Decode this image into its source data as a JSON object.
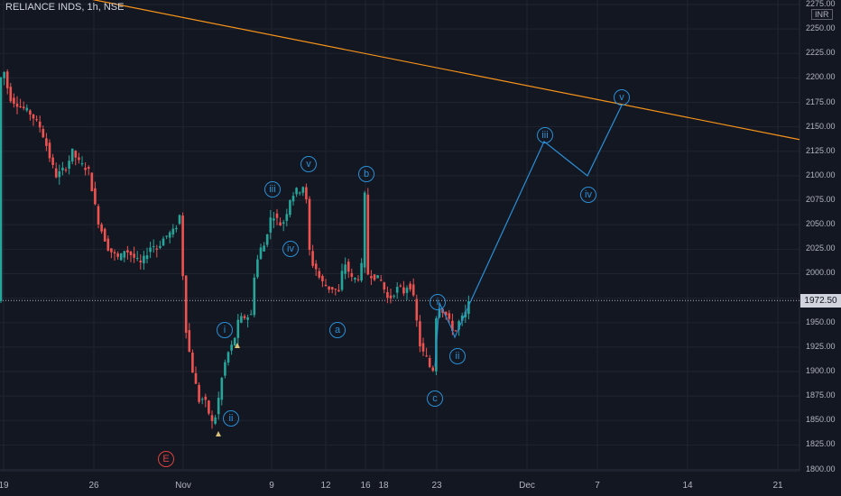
{
  "symbol_title": "RELIANCE INDS, 1h, NSE",
  "price_axis": {
    "ticks": [
      "2275.00",
      "2250.00",
      "2225.00",
      "2200.00",
      "2175.00",
      "2150.00",
      "2125.00",
      "2100.00",
      "2075.00",
      "2050.00",
      "2025.00",
      "2000.00",
      "1975.00",
      "1950.00",
      "1925.00",
      "1900.00",
      "1875.00",
      "1850.00",
      "1825.00",
      "1800.00"
    ],
    "unit": "INR",
    "current_price": "1972.50"
  },
  "time_axis": {
    "ticks": [
      "19",
      "26",
      "Nov",
      "9",
      "12",
      "16",
      "18",
      "23",
      "Dec",
      "7",
      "14",
      "21"
    ]
  },
  "wave_labels": [
    "i",
    "ii",
    "iii",
    "iv",
    "v",
    "a",
    "b",
    "c",
    "i",
    "ii",
    "iii",
    "iv",
    "v",
    "E"
  ],
  "colors": {
    "background": "#131722",
    "up_candle": "#26a69a",
    "down_candle": "#ef5350",
    "trendline": "#f7931a",
    "projection": "#2a8fd6",
    "label_red": "#e0423d"
  },
  "chart_data": {
    "type": "candlestick",
    "ylim": [
      1800,
      2275
    ],
    "trendline": [
      {
        "x": "17",
        "y": 2285
      },
      {
        "x": "22",
        "y": 2137
      }
    ],
    "projection": [
      {
        "x": "26",
        "y": 1972.5
      },
      {
        "x": "Dec 1",
        "y": 2135
      },
      {
        "x": "Dec 3",
        "y": 2100
      },
      {
        "x": "Dec 9",
        "y": 2172
      }
    ],
    "annotations": [
      {
        "text": "i",
        "y": 1942
      },
      {
        "text": "ii",
        "y": 1852
      },
      {
        "text": "iii",
        "y": 2086
      },
      {
        "text": "iv",
        "y": 2025
      },
      {
        "text": "v",
        "y": 2112
      },
      {
        "text": "a",
        "y": 1942
      },
      {
        "text": "b",
        "y": 2102
      },
      {
        "text": "c",
        "y": 1872
      },
      {
        "text": "i",
        "y": 1971
      },
      {
        "text": "ii",
        "y": 1916
      },
      {
        "text": "iii",
        "y": 2141
      },
      {
        "text": "iv",
        "y": 2081
      },
      {
        "text": "v",
        "y": 2180
      },
      {
        "text": "E",
        "y": 1811
      }
    ]
  }
}
